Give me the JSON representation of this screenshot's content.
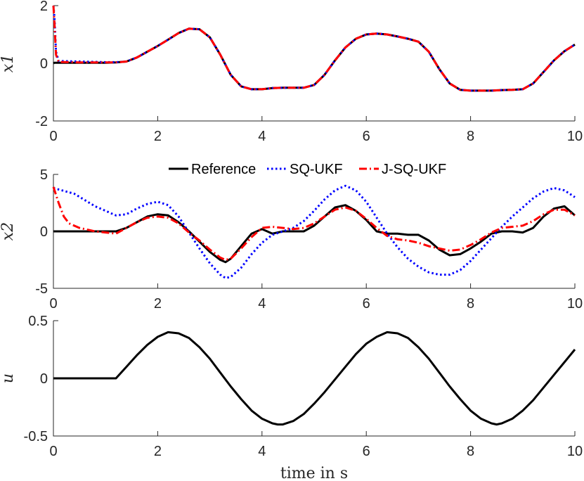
{
  "chart_data": [
    {
      "type": "line",
      "panel": "x1",
      "ylabel": "x1",
      "xlim": [
        0,
        10
      ],
      "ylim": [
        -2,
        2
      ],
      "xticks": [
        "0",
        "2",
        "4",
        "6",
        "8",
        "10"
      ],
      "yticks": [
        "-2",
        "0",
        "2"
      ],
      "grid": false,
      "series": [
        {
          "name": "Reference",
          "color": "#000000",
          "style": "solid",
          "x": [
            0,
            0.02,
            0.05,
            0.1,
            0.5,
            1.0,
            1.2,
            1.4,
            1.6,
            1.8,
            2.0,
            2.2,
            2.4,
            2.6,
            2.8,
            3.0,
            3.2,
            3.4,
            3.6,
            3.8,
            4.0,
            4.2,
            4.4,
            4.6,
            4.8,
            5.0,
            5.2,
            5.4,
            5.6,
            5.8,
            6.0,
            6.2,
            6.4,
            6.6,
            6.8,
            7.0,
            7.2,
            7.4,
            7.6,
            7.8,
            8.0,
            8.2,
            8.4,
            8.6,
            8.8,
            9.0,
            9.2,
            9.4,
            9.6,
            9.8,
            10.0
          ],
          "y": [
            0.0,
            0.02,
            0.02,
            0.02,
            0.02,
            0.02,
            0.03,
            0.06,
            0.2,
            0.4,
            0.6,
            0.82,
            1.05,
            1.2,
            1.18,
            0.9,
            0.3,
            -0.4,
            -0.8,
            -0.9,
            -0.9,
            -0.86,
            -0.85,
            -0.85,
            -0.85,
            -0.75,
            -0.4,
            0.1,
            0.55,
            0.85,
            1.0,
            1.03,
            1.0,
            0.93,
            0.85,
            0.75,
            0.4,
            -0.2,
            -0.7,
            -0.92,
            -0.95,
            -0.95,
            -0.95,
            -0.93,
            -0.92,
            -0.9,
            -0.7,
            -0.3,
            0.1,
            0.42,
            0.65
          ]
        },
        {
          "name": "SQ-UKF",
          "color": "#0000ff",
          "style": "dotted",
          "x": [
            0,
            0.02,
            0.05,
            0.1,
            0.5,
            1.0,
            1.2,
            1.4,
            1.6,
            1.8,
            2.0,
            2.2,
            2.4,
            2.6,
            2.8,
            3.0,
            3.2,
            3.4,
            3.6,
            3.8,
            4.0,
            4.2,
            4.4,
            4.6,
            4.8,
            5.0,
            5.2,
            5.4,
            5.6,
            5.8,
            6.0,
            6.2,
            6.4,
            6.6,
            6.8,
            7.0,
            7.2,
            7.4,
            7.6,
            7.8,
            8.0,
            8.2,
            8.4,
            8.6,
            8.8,
            9.0,
            9.2,
            9.4,
            9.6,
            9.8,
            10.0
          ],
          "y": [
            2.0,
            1.6,
            0.4,
            0.08,
            0.06,
            0.04,
            0.04,
            0.06,
            0.2,
            0.4,
            0.6,
            0.82,
            1.05,
            1.2,
            1.18,
            0.9,
            0.3,
            -0.4,
            -0.8,
            -0.9,
            -0.9,
            -0.86,
            -0.85,
            -0.85,
            -0.85,
            -0.75,
            -0.4,
            0.1,
            0.55,
            0.85,
            1.0,
            1.03,
            1.0,
            0.93,
            0.85,
            0.75,
            0.4,
            -0.2,
            -0.7,
            -0.92,
            -0.95,
            -0.95,
            -0.95,
            -0.93,
            -0.92,
            -0.9,
            -0.7,
            -0.3,
            0.1,
            0.42,
            0.65
          ]
        },
        {
          "name": "J-SQ-UKF",
          "color": "#ff0000",
          "style": "dashdot",
          "x": [
            0,
            0.02,
            0.05,
            0.1,
            0.5,
            1.0,
            1.2,
            1.4,
            1.6,
            1.8,
            2.0,
            2.2,
            2.4,
            2.6,
            2.8,
            3.0,
            3.2,
            3.4,
            3.6,
            3.8,
            4.0,
            4.2,
            4.4,
            4.6,
            4.8,
            5.0,
            5.2,
            5.4,
            5.6,
            5.8,
            6.0,
            6.2,
            6.4,
            6.6,
            6.8,
            7.0,
            7.2,
            7.4,
            7.6,
            7.8,
            8.0,
            8.2,
            8.4,
            8.6,
            8.8,
            9.0,
            9.2,
            9.4,
            9.6,
            9.8,
            10.0
          ],
          "y": [
            2.0,
            1.4,
            0.3,
            0.05,
            0.03,
            0.03,
            0.03,
            0.06,
            0.2,
            0.4,
            0.6,
            0.82,
            1.05,
            1.2,
            1.18,
            0.9,
            0.3,
            -0.4,
            -0.8,
            -0.9,
            -0.9,
            -0.86,
            -0.85,
            -0.85,
            -0.85,
            -0.75,
            -0.4,
            0.1,
            0.55,
            0.85,
            1.0,
            1.03,
            1.0,
            0.93,
            0.85,
            0.75,
            0.4,
            -0.2,
            -0.7,
            -0.92,
            -0.95,
            -0.95,
            -0.95,
            -0.93,
            -0.92,
            -0.9,
            -0.7,
            -0.3,
            0.1,
            0.42,
            0.65
          ]
        }
      ]
    },
    {
      "type": "line",
      "panel": "x2",
      "ylabel": "x2",
      "xlim": [
        0,
        10
      ],
      "ylim": [
        -5,
        5
      ],
      "xticks": [
        "0",
        "2",
        "4",
        "6",
        "8",
        "10"
      ],
      "yticks": [
        "-5",
        "0",
        "5"
      ],
      "grid": false,
      "legend_position": "top-center",
      "series": [
        {
          "name": "Reference",
          "color": "#000000",
          "style": "solid",
          "x": [
            0,
            0.4,
            0.8,
            1.2,
            1.4,
            1.6,
            1.8,
            2.0,
            2.2,
            2.4,
            2.6,
            2.8,
            3.0,
            3.2,
            3.3,
            3.4,
            3.6,
            3.8,
            4.0,
            4.2,
            4.4,
            4.6,
            4.8,
            5.0,
            5.2,
            5.4,
            5.6,
            5.8,
            6.0,
            6.2,
            6.4,
            6.6,
            6.8,
            7.0,
            7.2,
            7.4,
            7.6,
            7.8,
            8.0,
            8.2,
            8.4,
            8.6,
            8.8,
            9.0,
            9.2,
            9.4,
            9.6,
            9.8,
            10.0
          ],
          "y": [
            0.0,
            0.0,
            0.0,
            0.0,
            0.3,
            0.8,
            1.3,
            1.5,
            1.4,
            0.8,
            0.0,
            -0.9,
            -1.8,
            -2.5,
            -2.7,
            -2.4,
            -1.3,
            -0.2,
            0.2,
            -0.2,
            0.0,
            0.0,
            0.0,
            0.5,
            1.3,
            2.1,
            2.3,
            1.8,
            1.0,
            0.0,
            -0.2,
            -0.2,
            -0.3,
            -0.3,
            -0.8,
            -1.6,
            -2.1,
            -2.0,
            -1.5,
            -0.9,
            -0.2,
            0.0,
            0.0,
            -0.1,
            0.3,
            1.3,
            2.0,
            2.2,
            1.4
          ]
        },
        {
          "name": "SQ-UKF",
          "color": "#0000ff",
          "style": "dotted",
          "x": [
            0,
            0.4,
            0.8,
            1.2,
            1.4,
            1.6,
            1.8,
            2.0,
            2.2,
            2.4,
            2.6,
            2.8,
            3.0,
            3.2,
            3.3,
            3.4,
            3.6,
            3.8,
            4.0,
            4.2,
            4.4,
            4.6,
            4.8,
            5.0,
            5.2,
            5.4,
            5.6,
            5.8,
            6.0,
            6.2,
            6.4,
            6.6,
            6.8,
            7.0,
            7.2,
            7.4,
            7.6,
            7.8,
            8.0,
            8.2,
            8.4,
            8.6,
            8.8,
            9.0,
            9.2,
            9.4,
            9.6,
            9.8,
            10.0
          ],
          "y": [
            3.8,
            3.3,
            2.2,
            1.4,
            1.5,
            2.0,
            2.4,
            2.6,
            2.3,
            1.3,
            -0.1,
            -1.5,
            -2.8,
            -3.8,
            -4.1,
            -4.0,
            -3.2,
            -2.0,
            -1.0,
            -0.3,
            0.0,
            0.3,
            0.9,
            1.8,
            2.8,
            3.6,
            4.0,
            3.6,
            2.6,
            1.2,
            -0.2,
            -1.4,
            -2.4,
            -3.1,
            -3.6,
            -3.8,
            -3.8,
            -3.4,
            -2.6,
            -1.6,
            -0.6,
            0.4,
            1.3,
            2.1,
            2.9,
            3.5,
            3.8,
            3.6,
            3.0
          ]
        },
        {
          "name": "J-SQ-UKF",
          "color": "#ff0000",
          "style": "dashdot",
          "x": [
            0,
            0.1,
            0.2,
            0.3,
            0.5,
            0.8,
            1.2,
            1.4,
            1.6,
            1.8,
            2.0,
            2.2,
            2.4,
            2.6,
            2.8,
            3.0,
            3.2,
            3.3,
            3.4,
            3.6,
            3.8,
            4.0,
            4.2,
            4.4,
            4.6,
            4.8,
            5.0,
            5.2,
            5.4,
            5.6,
            5.8,
            6.0,
            6.2,
            6.4,
            6.6,
            6.8,
            7.0,
            7.2,
            7.4,
            7.6,
            7.8,
            8.0,
            8.2,
            8.4,
            8.6,
            8.8,
            9.0,
            9.2,
            9.4,
            9.6,
            9.8,
            10.0
          ],
          "y": [
            3.9,
            2.5,
            1.3,
            0.7,
            0.3,
            0.0,
            -0.2,
            0.3,
            0.8,
            1.2,
            1.3,
            1.2,
            0.7,
            -0.1,
            -0.8,
            -1.6,
            -2.3,
            -2.5,
            -2.4,
            -1.5,
            -0.5,
            0.3,
            0.4,
            0.3,
            0.2,
            0.3,
            0.7,
            1.3,
            1.9,
            2.1,
            1.8,
            1.1,
            0.3,
            -0.4,
            -0.7,
            -0.8,
            -1.0,
            -1.3,
            -1.5,
            -1.7,
            -1.6,
            -1.2,
            -0.7,
            -0.1,
            0.3,
            0.4,
            0.5,
            0.9,
            1.5,
            1.9,
            1.9,
            1.4
          ]
        }
      ]
    },
    {
      "type": "line",
      "panel": "u",
      "ylabel": "u",
      "xlabel": "time in s",
      "xlim": [
        0,
        10
      ],
      "ylim": [
        -0.5,
        0.5
      ],
      "xticks": [
        "0",
        "2",
        "4",
        "6",
        "8",
        "10"
      ],
      "yticks": [
        "-0.5",
        "0",
        "0.5"
      ],
      "grid": false,
      "series": [
        {
          "color": "#000000",
          "style": "solid",
          "x": [
            0,
            1.2,
            1.4,
            1.6,
            1.8,
            2.0,
            2.2,
            2.4,
            2.6,
            2.8,
            3.0,
            3.2,
            3.4,
            3.6,
            3.8,
            4.0,
            4.2,
            4.3,
            4.4,
            4.6,
            4.8,
            5.0,
            5.2,
            5.4,
            5.6,
            5.8,
            6.0,
            6.2,
            6.4,
            6.6,
            6.8,
            7.0,
            7.2,
            7.4,
            7.6,
            7.8,
            8.0,
            8.2,
            8.4,
            8.5,
            8.6,
            8.8,
            9.0,
            9.2,
            9.4,
            9.6,
            9.8,
            10.0
          ],
          "y": [
            0.0,
            0.0,
            0.1,
            0.2,
            0.29,
            0.36,
            0.4,
            0.39,
            0.35,
            0.27,
            0.17,
            0.05,
            -0.07,
            -0.18,
            -0.28,
            -0.35,
            -0.39,
            -0.4,
            -0.4,
            -0.37,
            -0.31,
            -0.22,
            -0.12,
            -0.01,
            0.1,
            0.21,
            0.3,
            0.36,
            0.4,
            0.39,
            0.35,
            0.27,
            0.17,
            0.05,
            -0.07,
            -0.18,
            -0.28,
            -0.35,
            -0.39,
            -0.4,
            -0.39,
            -0.35,
            -0.28,
            -0.19,
            -0.08,
            0.03,
            0.14,
            0.25
          ]
        }
      ]
    }
  ]
}
